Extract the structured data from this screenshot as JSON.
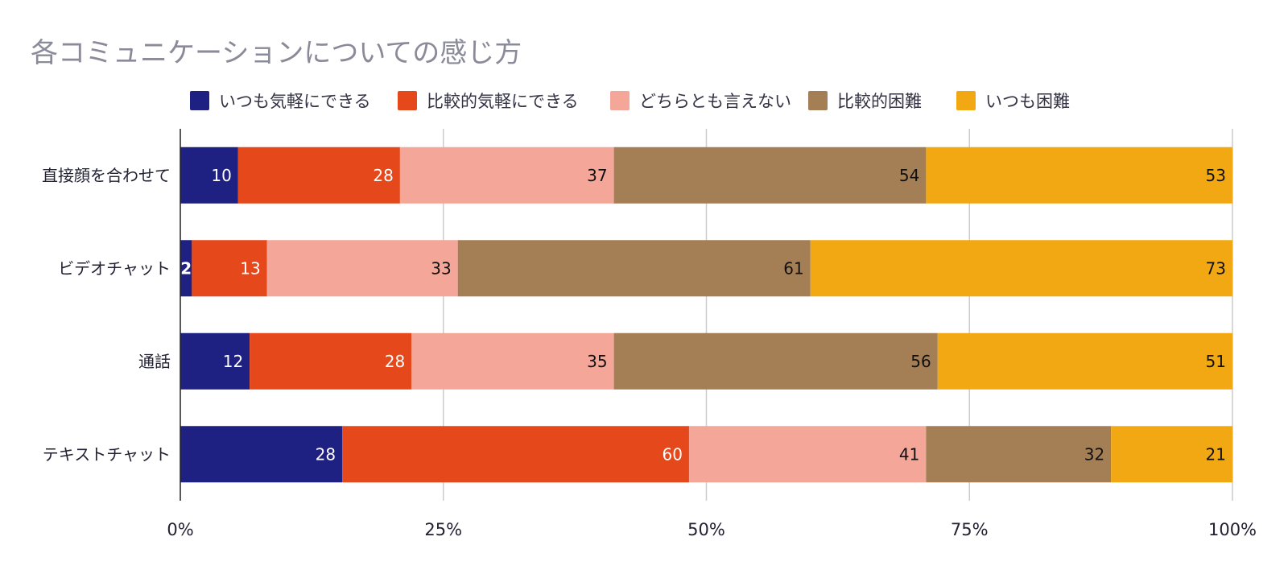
{
  "title": "各コミュニケーションについての感じ方",
  "legend_items": [
    {
      "label": "いつも気軽にできる",
      "color": "#1f2182"
    },
    {
      "label": "比較的気軽にできる",
      "color": "#e4481b"
    },
    {
      "label": "どちらとも言えない",
      "color": "#f4a699"
    },
    {
      "label": "比較的困難",
      "color": "#a47f55"
    },
    {
      "label": "いつも困難",
      "color": "#f2a813"
    }
  ],
  "chart_data": {
    "type": "bar",
    "orientation": "horizontal",
    "stacking": "percent",
    "title": "各コミュニケーションについての感じ方",
    "categories": [
      "直接顔を合わせて",
      "ビデオチャット",
      "通話",
      "テキストチャット"
    ],
    "series": [
      {
        "name": "いつも気軽にできる",
        "color": "#1f2182",
        "label_color": "#ffffff",
        "values": [
          10,
          2,
          12,
          28
        ]
      },
      {
        "name": "比較的気軽にできる",
        "color": "#e4481b",
        "label_color": "#ffffff",
        "values": [
          28,
          13,
          28,
          60
        ]
      },
      {
        "name": "どちらとも言えない",
        "color": "#f4a699",
        "label_color": "#111111",
        "values": [
          37,
          33,
          35,
          41
        ]
      },
      {
        "name": "比較的困難",
        "color": "#a47f55",
        "label_color": "#111111",
        "values": [
          54,
          61,
          56,
          32
        ]
      },
      {
        "name": "いつも困難",
        "color": "#f2a813",
        "label_color": "#111111",
        "values": [
          53,
          73,
          51,
          21
        ]
      }
    ],
    "x_ticks": [
      "0%",
      "25%",
      "50%",
      "75%",
      "100%"
    ],
    "xlim": [
      0,
      100
    ],
    "grid": true,
    "legend_position": "top"
  }
}
